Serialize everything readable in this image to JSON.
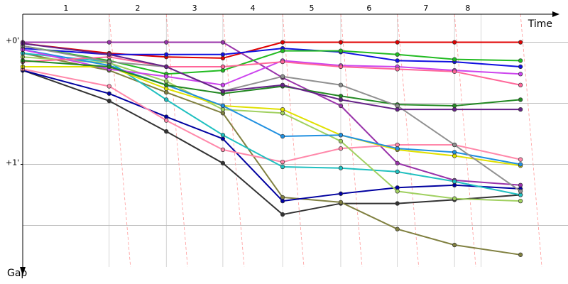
{
  "chart_data": {
    "type": "line",
    "xlabel": "Time",
    "ylabel": "Gap",
    "xlim": [
      0,
      100
    ],
    "ylim": [
      -0.23,
      1.84
    ],
    "xticks": [
      16.5,
      27.4,
      38.2,
      49.6,
      60.7,
      71.5,
      82.4,
      87.5
    ],
    "lap_labels": [
      "1",
      "2",
      "3",
      "4",
      "5",
      "6",
      "7",
      "8"
    ],
    "yticks": [
      {
        "value": 0,
        "label": "+0'"
      },
      {
        "value": 1,
        "label": "+1'"
      }
    ],
    "grid_y": [
      0,
      0.5,
      1,
      1.5
    ],
    "x": [
      0,
      16.5,
      27.4,
      38.2,
      49.6,
      60.7,
      71.5,
      82.4,
      95
    ],
    "series": [
      {
        "color": "#e00000",
        "values": [
          0.01,
          0.09,
          0.12,
          0.13,
          0,
          0,
          0,
          0,
          0
        ]
      },
      {
        "color": "#9933aa",
        "values": [
          0,
          0,
          0,
          0,
          0.29,
          0.52,
          0.99,
          1.13,
          1.17
        ]
      },
      {
        "color": "#1010e0",
        "values": [
          0.05,
          0.1,
          0.1,
          0.1,
          0.05,
          0.08,
          0.15,
          0.16,
          0.2
        ]
      },
      {
        "color": "#22bb22",
        "values": [
          0.03,
          0.15,
          0.26,
          0.23,
          0.07,
          0.07,
          0.1,
          0.14,
          0.15
        ]
      },
      {
        "color": "#333333",
        "values": [
          0.23,
          0.48,
          0.73,
          0.99,
          1.41,
          1.32,
          1.32,
          1.29,
          1.25
        ]
      },
      {
        "color": "#808040",
        "values": [
          0.09,
          0.23,
          0.41,
          0.58,
          1.27,
          1.31,
          1.53,
          1.66,
          1.74
        ]
      },
      {
        "color": "#0000a0",
        "values": [
          0.23,
          0.42,
          0.61,
          0.79,
          1.3,
          1.24,
          1.19,
          1.17,
          1.2
        ]
      },
      {
        "color": "#ff88aa",
        "values": [
          0.22,
          0.36,
          0.64,
          0.88,
          0.98,
          0.87,
          0.84,
          0.84,
          0.96
        ]
      },
      {
        "color": "#20c0c0",
        "values": [
          0.09,
          0.16,
          0.47,
          0.76,
          1.02,
          1.03,
          1.06,
          1.14,
          1.25
        ]
      },
      {
        "color": "#a0d060",
        "values": [
          0.12,
          0.17,
          0.32,
          0.55,
          0.58,
          0.81,
          1.22,
          1.28,
          1.3
        ]
      },
      {
        "color": "#e0e000",
        "values": [
          0.2,
          0.2,
          0.38,
          0.52,
          0.55,
          0.76,
          0.88,
          0.93,
          1.01
        ]
      },
      {
        "color": "#2090e0",
        "values": [
          0.06,
          0.19,
          0.35,
          0.52,
          0.77,
          0.76,
          0.87,
          0.9,
          1
        ]
      },
      {
        "color": "#cc44ee",
        "values": [
          0.06,
          0.22,
          0.28,
          0.35,
          0.15,
          0.19,
          0.2,
          0.23,
          0.26
        ]
      },
      {
        "color": "#ff6699",
        "values": [
          0.16,
          0.12,
          0.2,
          0.2,
          0.16,
          0.2,
          0.22,
          0.24,
          0.35
        ]
      },
      {
        "color": "#228822",
        "values": [
          0.15,
          0.2,
          0.35,
          0.42,
          0.36,
          0.44,
          0.51,
          0.52,
          0.47
        ]
      },
      {
        "color": "#909090",
        "values": [
          0.03,
          0.16,
          0.2,
          0.4,
          0.28,
          0.35,
          0.52,
          0.84,
          1.22
        ]
      },
      {
        "color": "#662288",
        "values": [
          0.01,
          0.1,
          0.2,
          0.4,
          0.35,
          0.47,
          0.55,
          0.55,
          0.55
        ]
      }
    ]
  }
}
